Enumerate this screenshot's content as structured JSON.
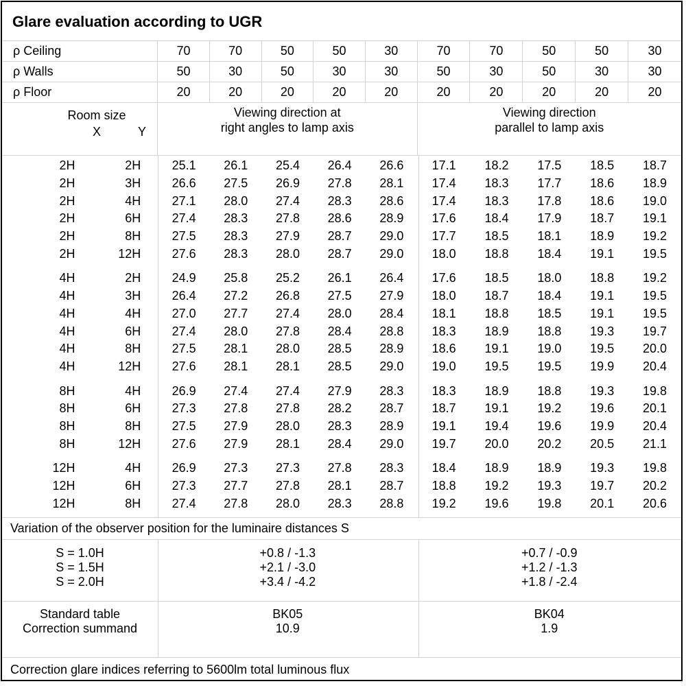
{
  "title": "Glare evaluation according to UGR",
  "reflectance_rows": [
    {
      "label": "ρ Ceiling",
      "values": [
        "70",
        "70",
        "50",
        "50",
        "30",
        "70",
        "70",
        "50",
        "50",
        "30"
      ]
    },
    {
      "label": "ρ Walls",
      "values": [
        "50",
        "30",
        "50",
        "30",
        "30",
        "50",
        "30",
        "50",
        "30",
        "30"
      ]
    },
    {
      "label": "ρ Floor",
      "values": [
        "20",
        "20",
        "20",
        "20",
        "20",
        "20",
        "20",
        "20",
        "20",
        "20"
      ]
    }
  ],
  "room_size_header": {
    "title": "Room size",
    "x": "X",
    "y": "Y"
  },
  "viewing_headers": {
    "left_line1": "Viewing direction at",
    "left_line2": "right angles to lamp axis",
    "right_line1": "Viewing direction",
    "right_line2": "parallel to lamp axis"
  },
  "data_groups": [
    {
      "rows": [
        {
          "x": "2H",
          "y": "2H",
          "left": [
            "25.1",
            "26.1",
            "25.4",
            "26.4",
            "26.6"
          ],
          "right": [
            "17.1",
            "18.2",
            "17.5",
            "18.5",
            "18.7"
          ]
        },
        {
          "x": "2H",
          "y": "3H",
          "left": [
            "26.6",
            "27.5",
            "26.9",
            "27.8",
            "28.1"
          ],
          "right": [
            "17.4",
            "18.3",
            "17.7",
            "18.6",
            "18.9"
          ]
        },
        {
          "x": "2H",
          "y": "4H",
          "left": [
            "27.1",
            "28.0",
            "27.4",
            "28.3",
            "28.6"
          ],
          "right": [
            "17.4",
            "18.3",
            "17.8",
            "18.6",
            "19.0"
          ]
        },
        {
          "x": "2H",
          "y": "6H",
          "left": [
            "27.4",
            "28.3",
            "27.8",
            "28.6",
            "28.9"
          ],
          "right": [
            "17.6",
            "18.4",
            "17.9",
            "18.7",
            "19.1"
          ]
        },
        {
          "x": "2H",
          "y": "8H",
          "left": [
            "27.5",
            "28.3",
            "27.9",
            "28.7",
            "29.0"
          ],
          "right": [
            "17.7",
            "18.5",
            "18.1",
            "18.9",
            "19.2"
          ]
        },
        {
          "x": "2H",
          "y": "12H",
          "left": [
            "27.6",
            "28.3",
            "28.0",
            "28.7",
            "29.0"
          ],
          "right": [
            "18.0",
            "18.8",
            "18.4",
            "19.1",
            "19.5"
          ]
        }
      ]
    },
    {
      "rows": [
        {
          "x": "4H",
          "y": "2H",
          "left": [
            "24.9",
            "25.8",
            "25.2",
            "26.1",
            "26.4"
          ],
          "right": [
            "17.6",
            "18.5",
            "18.0",
            "18.8",
            "19.2"
          ]
        },
        {
          "x": "4H",
          "y": "3H",
          "left": [
            "26.4",
            "27.2",
            "26.8",
            "27.5",
            "27.9"
          ],
          "right": [
            "18.0",
            "18.7",
            "18.4",
            "19.1",
            "19.5"
          ]
        },
        {
          "x": "4H",
          "y": "4H",
          "left": [
            "27.0",
            "27.7",
            "27.4",
            "28.0",
            "28.4"
          ],
          "right": [
            "18.1",
            "18.8",
            "18.5",
            "19.1",
            "19.5"
          ]
        },
        {
          "x": "4H",
          "y": "6H",
          "left": [
            "27.4",
            "28.0",
            "27.8",
            "28.4",
            "28.8"
          ],
          "right": [
            "18.3",
            "18.9",
            "18.8",
            "19.3",
            "19.7"
          ]
        },
        {
          "x": "4H",
          "y": "8H",
          "left": [
            "27.5",
            "28.1",
            "28.0",
            "28.5",
            "28.9"
          ],
          "right": [
            "18.6",
            "19.1",
            "19.0",
            "19.5",
            "20.0"
          ]
        },
        {
          "x": "4H",
          "y": "12H",
          "left": [
            "27.6",
            "28.1",
            "28.1",
            "28.5",
            "29.0"
          ],
          "right": [
            "19.0",
            "19.5",
            "19.5",
            "19.9",
            "20.4"
          ]
        }
      ]
    },
    {
      "rows": [
        {
          "x": "8H",
          "y": "4H",
          "left": [
            "26.9",
            "27.4",
            "27.4",
            "27.9",
            "28.3"
          ],
          "right": [
            "18.3",
            "18.9",
            "18.8",
            "19.3",
            "19.8"
          ]
        },
        {
          "x": "8H",
          "y": "6H",
          "left": [
            "27.3",
            "27.8",
            "27.8",
            "28.2",
            "28.7"
          ],
          "right": [
            "18.7",
            "19.1",
            "19.2",
            "19.6",
            "20.1"
          ]
        },
        {
          "x": "8H",
          "y": "8H",
          "left": [
            "27.5",
            "27.9",
            "28.0",
            "28.3",
            "28.9"
          ],
          "right": [
            "19.1",
            "19.4",
            "19.6",
            "19.9",
            "20.4"
          ]
        },
        {
          "x": "8H",
          "y": "12H",
          "left": [
            "27.6",
            "27.9",
            "28.1",
            "28.4",
            "29.0"
          ],
          "right": [
            "19.7",
            "20.0",
            "20.2",
            "20.5",
            "21.1"
          ]
        }
      ]
    },
    {
      "rows": [
        {
          "x": "12H",
          "y": "4H",
          "left": [
            "26.9",
            "27.3",
            "27.3",
            "27.8",
            "28.3"
          ],
          "right": [
            "18.4",
            "18.9",
            "18.9",
            "19.3",
            "19.8"
          ]
        },
        {
          "x": "12H",
          "y": "6H",
          "left": [
            "27.3",
            "27.7",
            "27.8",
            "28.1",
            "28.7"
          ],
          "right": [
            "18.8",
            "19.2",
            "19.3",
            "19.7",
            "20.2"
          ]
        },
        {
          "x": "12H",
          "y": "8H",
          "left": [
            "27.4",
            "27.8",
            "28.0",
            "28.3",
            "28.8"
          ],
          "right": [
            "19.2",
            "19.6",
            "19.8",
            "20.1",
            "20.6"
          ]
        }
      ]
    }
  ],
  "variation_note": "Variation of the observer position for the luminaire distances S",
  "s_rows": [
    {
      "label": "S = 1.0H",
      "left": "+0.8 / -1.3",
      "right": "+0.7 / -0.9"
    },
    {
      "label": "S = 1.5H",
      "left": "+2.1 / -3.0",
      "right": "+1.2 / -1.3"
    },
    {
      "label": "S = 2.0H",
      "left": "+3.4 / -4.2",
      "right": "+1.8 / -2.4"
    }
  ],
  "summary": {
    "standard_table_label": "Standard table",
    "standard_left": "BK05",
    "standard_right": "BK04",
    "correction_label": "Correction summand",
    "correction_left": "10.9",
    "correction_right": "1.9"
  },
  "footer_note": "Correction glare indices referring to 5600lm total luminous flux"
}
